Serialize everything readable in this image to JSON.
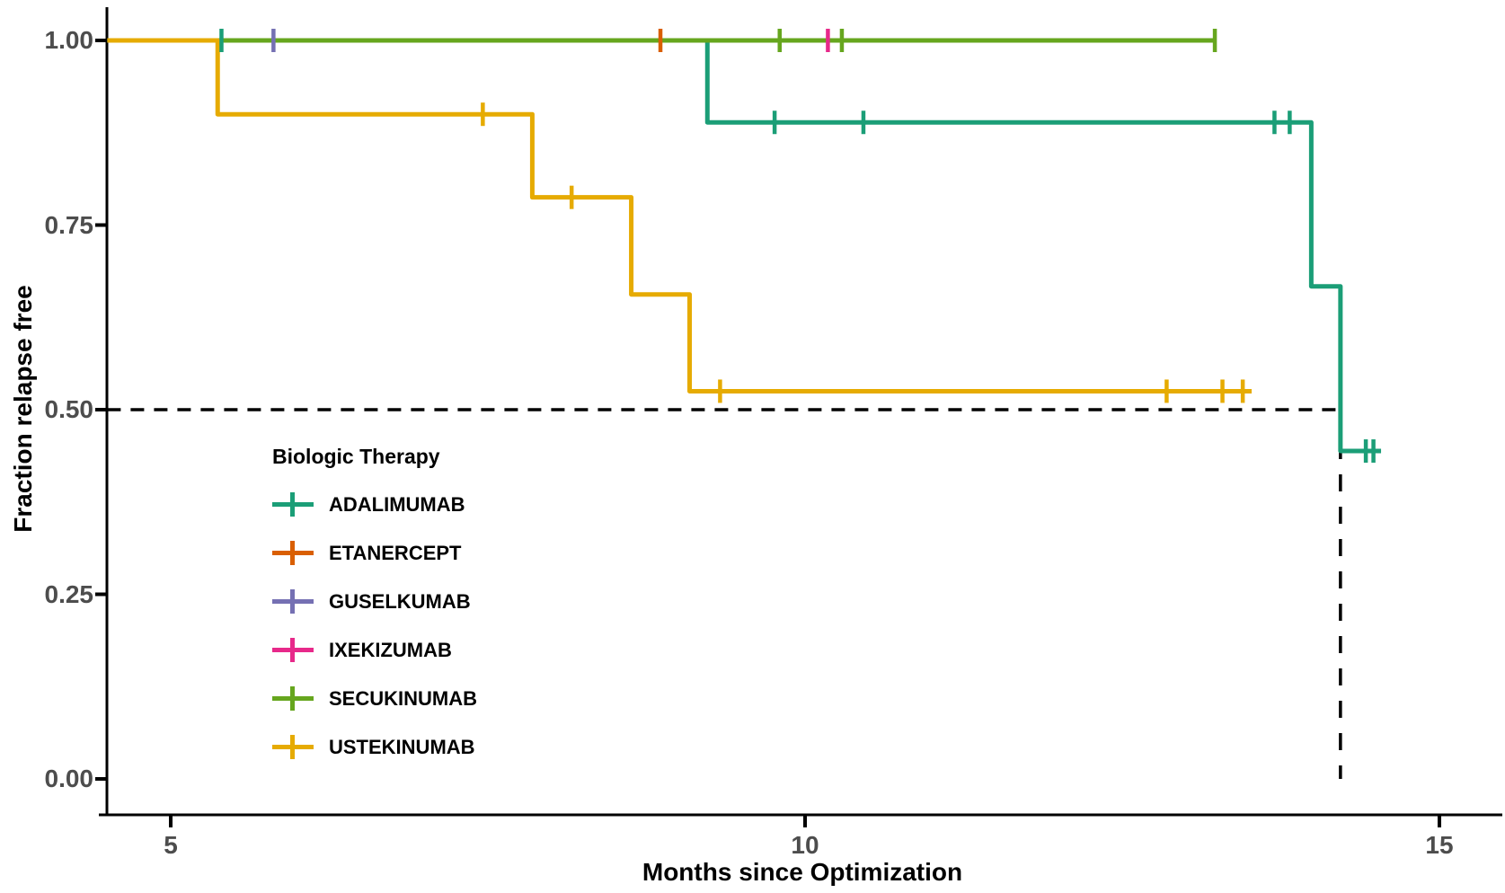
{
  "chart_data": {
    "type": "line",
    "subtype": "kaplan-meier-step",
    "xlabel": "Months since Optimization",
    "ylabel": "Fraction relapse free",
    "x_ticks": [
      {
        "value": 5,
        "label": "5"
      },
      {
        "value": 10,
        "label": "10"
      },
      {
        "value": 15,
        "label": "15"
      }
    ],
    "y_ticks": [
      {
        "value": 0.0,
        "label": "0.00"
      },
      {
        "value": 0.25,
        "label": "0.25"
      },
      {
        "value": 0.5,
        "label": "0.50"
      },
      {
        "value": 0.75,
        "label": "0.75"
      },
      {
        "value": 1.0,
        "label": "1.00"
      }
    ],
    "xlim": [
      4.5,
      15.55
    ],
    "ylim": [
      0.0,
      1.0
    ],
    "grid": false,
    "legend_position": "inside-left-middle",
    "legend_title": "Biologic Therapy",
    "series": [
      {
        "name": "ADALIMUMAB",
        "color": "#1B9E77",
        "steps": [
          [
            4.5,
            1.0
          ],
          [
            9.23,
            1.0
          ],
          [
            9.23,
            0.889
          ],
          [
            13.99,
            0.889
          ],
          [
            13.99,
            0.667
          ],
          [
            14.22,
            0.667
          ],
          [
            14.22,
            0.444
          ],
          [
            14.54,
            0.444
          ]
        ],
        "censors": [
          [
            5.4,
            1.0
          ],
          [
            9.76,
            0.889
          ],
          [
            10.46,
            0.889
          ],
          [
            13.7,
            0.889
          ],
          [
            13.82,
            0.889
          ],
          [
            14.42,
            0.444
          ],
          [
            14.48,
            0.444
          ]
        ]
      },
      {
        "name": "ETANERCEPT",
        "color": "#D95F02",
        "steps": [],
        "censors": [
          [
            8.86,
            1.0
          ]
        ]
      },
      {
        "name": "GUSELKUMAB",
        "color": "#7570B3",
        "steps": [],
        "censors": [
          [
            5.81,
            1.0
          ]
        ]
      },
      {
        "name": "IXEKIZUMAB",
        "color": "#E7298A",
        "steps": [],
        "censors": [
          [
            10.18,
            1.0
          ]
        ]
      },
      {
        "name": "SECUKINUMAB",
        "color": "#66A61E",
        "steps": [
          [
            4.5,
            1.0
          ],
          [
            13.23,
            1.0
          ]
        ],
        "censors": [
          [
            9.8,
            1.0
          ],
          [
            10.29,
            1.0
          ],
          [
            13.23,
            1.0
          ]
        ]
      },
      {
        "name": "USTEKINUMAB",
        "color": "#E6AB02",
        "steps": [
          [
            4.5,
            1.0
          ],
          [
            5.37,
            1.0
          ],
          [
            5.37,
            0.9
          ],
          [
            7.85,
            0.9
          ],
          [
            7.85,
            0.7875
          ],
          [
            8.63,
            0.7875
          ],
          [
            8.63,
            0.656
          ],
          [
            9.09,
            0.656
          ],
          [
            9.09,
            0.525
          ],
          [
            13.52,
            0.525
          ]
        ],
        "censors": [
          [
            7.46,
            0.9
          ],
          [
            8.16,
            0.7875
          ],
          [
            9.33,
            0.525
          ],
          [
            12.85,
            0.525
          ],
          [
            13.29,
            0.525
          ],
          [
            13.45,
            0.525
          ]
        ]
      }
    ],
    "median_reference_lines": {
      "color": "#000000",
      "horizontal": {
        "y": 0.5,
        "x_from": 4.5,
        "x_to": 14.22
      },
      "vertical": {
        "x": 14.22,
        "y_from": 0.5,
        "y_to": 0.0
      }
    }
  }
}
